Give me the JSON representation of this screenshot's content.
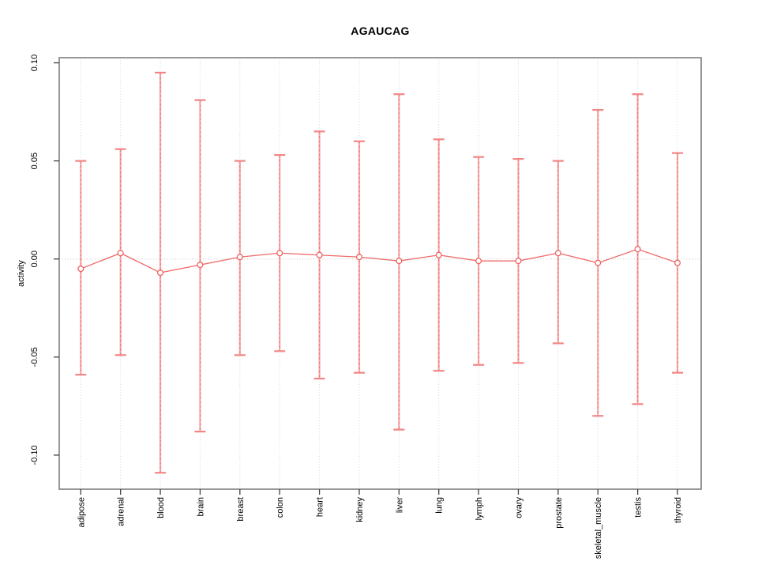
{
  "page": {
    "background": "#ffffff"
  },
  "chart_data": {
    "type": "errorbar",
    "title": "AGAUCAG",
    "xlabel": "",
    "ylabel": "activity",
    "ylim": [
      -0.115,
      0.105
    ],
    "ytick_labels": [
      "0.10",
      "0.05",
      "0.00",
      "-0.05",
      "-0.10"
    ],
    "ytick_values": [
      0.1,
      0.05,
      0.0,
      -0.05,
      -0.1
    ],
    "grid": {
      "vertical_dotted_at_each_category": true,
      "horizontal_dotted_at_zero": true
    },
    "legend_position": "none",
    "categories": [
      "adipose",
      "adrenal",
      "blood",
      "brain",
      "breast",
      "colon",
      "heart",
      "kidney",
      "liver",
      "lung",
      "lymph",
      "ovary",
      "prostate",
      "skeletal_muscle",
      "testis",
      "thyroid"
    ],
    "series": [
      {
        "name": "activity_mean",
        "values": [
          -0.005,
          0.003,
          -0.007,
          -0.003,
          0.001,
          0.003,
          0.002,
          0.001,
          -0.001,
          0.002,
          -0.001,
          -0.001,
          0.003,
          -0.002,
          0.005,
          -0.002
        ]
      },
      {
        "name": "upper_error",
        "values": [
          0.05,
          0.056,
          0.095,
          0.081,
          0.05,
          0.053,
          0.065,
          0.06,
          0.084,
          0.061,
          0.052,
          0.051,
          0.05,
          0.076,
          0.084,
          0.054
        ]
      },
      {
        "name": "lower_error",
        "values": [
          -0.059,
          -0.049,
          -0.109,
          -0.088,
          -0.049,
          -0.047,
          -0.061,
          -0.058,
          -0.087,
          -0.057,
          -0.054,
          -0.053,
          -0.043,
          -0.08,
          -0.074,
          -0.058
        ]
      }
    ],
    "colors": {
      "stem": "#f8a9a9",
      "stem_dash": "#e66a6a",
      "cap": "#f28585",
      "point_stroke": "#ed6262",
      "point_fill": "#ffffff",
      "line": "#ee6b6b",
      "grid": "#d6d6d6",
      "zero_line": "#c4c4c4",
      "frame": "#7f7f7f",
      "tick": "#404040",
      "text": "#000000"
    }
  }
}
